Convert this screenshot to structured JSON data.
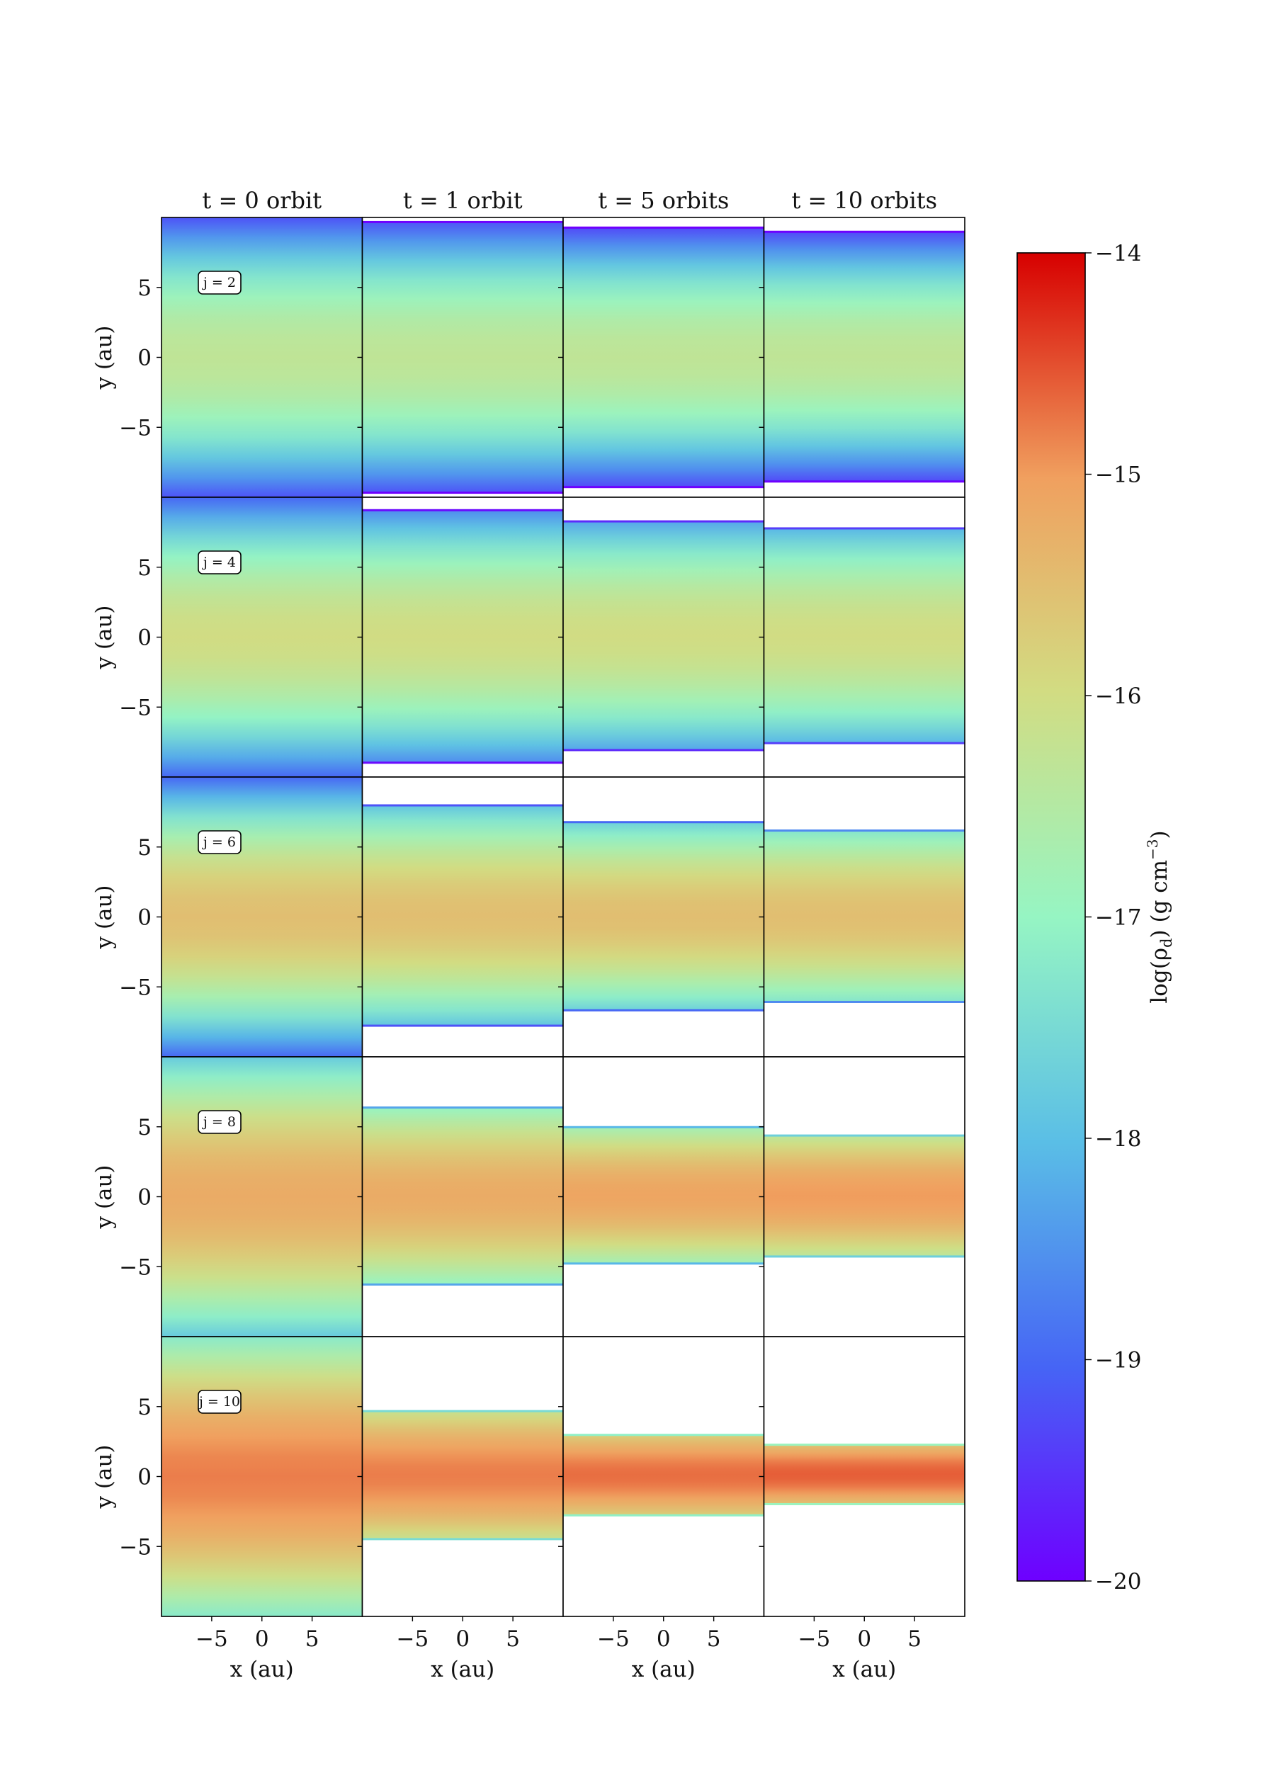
{
  "chart_data": {
    "type": "heatmap",
    "columns": [
      {
        "title": "t = 0 orbit",
        "xlabel": "x (au)"
      },
      {
        "title": "t = 1 orbit",
        "xlabel": "x (au)"
      },
      {
        "title": "t = 5 orbits",
        "xlabel": "x (au)"
      },
      {
        "title": "t = 10 orbits",
        "xlabel": "x (au)"
      }
    ],
    "rows": [
      {
        "label": "j = 2",
        "ylabel": "y (au)",
        "panels": [
          {
            "y_top": 10.0,
            "y_bottom": -10.0,
            "peak": -16.3,
            "edge": -19.2
          },
          {
            "y_top": 9.7,
            "y_bottom": -9.7,
            "peak": -16.3,
            "edge": -19.2
          },
          {
            "y_top": 9.3,
            "y_bottom": -9.3,
            "peak": -16.3,
            "edge": -19.3
          },
          {
            "y_top": 9.0,
            "y_bottom": -8.9,
            "peak": -16.3,
            "edge": -19.3
          }
        ]
      },
      {
        "label": "j = 4",
        "ylabel": "y (au)",
        "panels": [
          {
            "y_top": 10.0,
            "y_bottom": -10.0,
            "peak": -16.0,
            "edge": -19.0
          },
          {
            "y_top": 9.1,
            "y_bottom": -9.0,
            "peak": -16.0,
            "edge": -18.6
          },
          {
            "y_top": 8.3,
            "y_bottom": -8.1,
            "peak": -16.0,
            "edge": -18.3
          },
          {
            "y_top": 7.8,
            "y_bottom": -7.6,
            "peak": -16.0,
            "edge": -18.1
          }
        ]
      },
      {
        "label": "j = 6",
        "ylabel": "y (au)",
        "panels": [
          {
            "y_top": 10.0,
            "y_bottom": -10.0,
            "peak": -15.5,
            "edge": -19.0
          },
          {
            "y_top": 8.0,
            "y_bottom": -7.8,
            "peak": -15.5,
            "edge": -17.9
          },
          {
            "y_top": 6.8,
            "y_bottom": -6.7,
            "peak": -15.5,
            "edge": -17.7
          },
          {
            "y_top": 6.2,
            "y_bottom": -6.1,
            "peak": -15.5,
            "edge": -17.3
          }
        ]
      },
      {
        "label": "j = 8",
        "ylabel": "y (au)",
        "panels": [
          {
            "y_top": 10.0,
            "y_bottom": -10.0,
            "peak": -15.2,
            "edge": -17.8
          },
          {
            "y_top": 6.4,
            "y_bottom": -6.3,
            "peak": -15.2,
            "edge": -17.0
          },
          {
            "y_top": 5.0,
            "y_bottom": -4.8,
            "peak": -15.1,
            "edge": -16.8
          },
          {
            "y_top": 4.4,
            "y_bottom": -4.3,
            "peak": -15.0,
            "edge": -16.4
          }
        ]
      },
      {
        "label": "j = 10",
        "ylabel": "y (au)",
        "panels": [
          {
            "y_top": 10.0,
            "y_bottom": -10.0,
            "peak": -14.8,
            "edge": -17.2
          },
          {
            "y_top": 4.7,
            "y_bottom": -4.5,
            "peak": -14.8,
            "edge": -16.2
          },
          {
            "y_top": 3.0,
            "y_bottom": -2.8,
            "peak": -14.7,
            "edge": -15.8
          },
          {
            "y_top": 2.3,
            "y_bottom": -2.0,
            "peak": -14.6,
            "edge": -15.6
          }
        ]
      }
    ],
    "xlim": [
      -10,
      10
    ],
    "ylim": [
      -10,
      10
    ],
    "xticks": [
      -5,
      0,
      5
    ],
    "xtick_labels": [
      "−5",
      "0",
      "5"
    ],
    "yticks": [
      5,
      0,
      -5
    ],
    "ytick_labels": [
      "5",
      "0",
      "−5"
    ],
    "colorbar": {
      "label": "log(ρd) (g cm⁻³)",
      "label_main": "log(ρ",
      "label_sub": "d",
      "label_mid": ") (g cm",
      "label_sup": "−3",
      "label_end": ")",
      "min": -20,
      "max": -14,
      "ticks": [
        -14,
        -15,
        -16,
        -17,
        -18,
        -19,
        -20
      ],
      "tick_labels": [
        "−14",
        "−15",
        "−16",
        "−17",
        "−18",
        "−19",
        "−20"
      ]
    }
  }
}
